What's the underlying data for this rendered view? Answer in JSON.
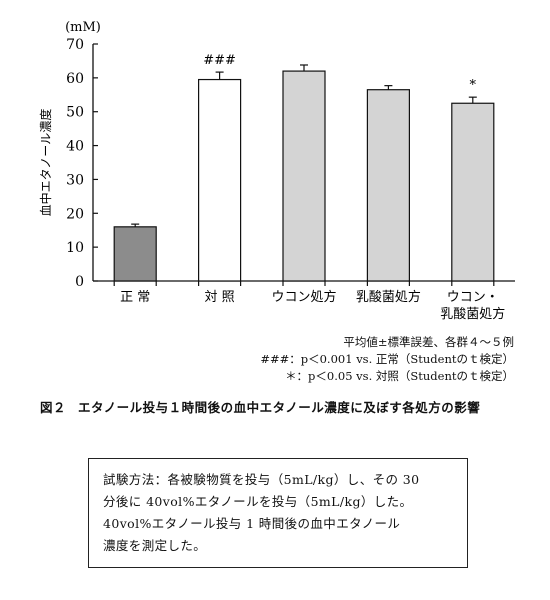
{
  "chart_data": {
    "type": "bar",
    "unit": "(mM)",
    "ylabel": "血中エタノール濃度",
    "ylim": [
      0,
      70
    ],
    "yticks": [
      0,
      10,
      20,
      30,
      40,
      50,
      60,
      70
    ],
    "categories": [
      "正 常",
      "対 照",
      "ウコン処方",
      "乳酸菌処方",
      "ウコン・\n乳酸菌処方"
    ],
    "values": [
      16,
      59.5,
      62,
      56.5,
      52.5
    ],
    "errors": [
      0.8,
      2.2,
      1.8,
      1.2,
      1.8
    ],
    "bar_colors": [
      "#8c8c8c",
      "#ffffff",
      "#d4d4d4",
      "#d4d4d4",
      "#d4d4d4"
    ],
    "significance": [
      "",
      "###",
      "",
      "",
      "*"
    ]
  },
  "notes": [
    "平均値±標準誤差、各群４～５例",
    "###：p＜0.001 vs. 正常（Studentのｔ検定）",
    "＊：p＜0.05 vs. 対照（Studentのｔ検定）"
  ],
  "caption": {
    "number": "図２",
    "text": "エタノール投与１時間後の血中エタノール濃度に及ぼす各処方の影響"
  },
  "method_box": {
    "lines": [
      "試験方法：各被験物質を投与（5mL/kg）し、その 30",
      "分後に 40vol%エタノールを投与（5mL/kg）した。",
      "40vol%エタノール投与 1 時間後の血中エタノール",
      "濃度を測定した。"
    ]
  }
}
